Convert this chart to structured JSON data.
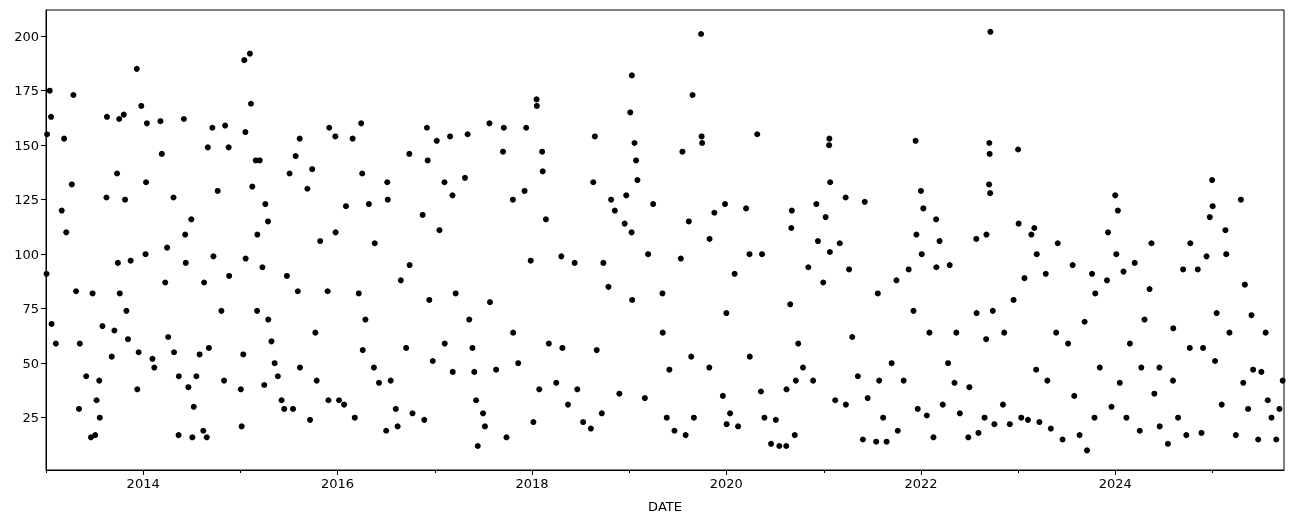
{
  "chart_data": {
    "type": "scatter",
    "xlabel": "DATE",
    "color": "#000000",
    "marker": "circle",
    "xlim": [
      "2013-01-01",
      "2025-09-26"
    ],
    "ylim": [
      1,
      212
    ],
    "xticks": [
      {
        "value": "2013",
        "label": null
      },
      "2014",
      {
        "value": "2015",
        "label": null
      },
      "2016",
      {
        "value": "2017",
        "label": null
      },
      "2018",
      {
        "value": "2019",
        "label": null
      },
      "2020",
      {
        "value": "2021",
        "label": null
      },
      "2022",
      {
        "value": "2023",
        "label": null
      },
      "2024",
      {
        "value": "2025",
        "label": null
      }
    ],
    "yticks": [
      25,
      50,
      75,
      100,
      125,
      150,
      175,
      200
    ],
    "x": [
      "2013-01-03",
      "2013-01-05",
      "2013-01-15",
      "2013-01-20",
      "2013-01-22",
      "2013-02-07",
      "2013-03-01",
      "2013-03-10",
      "2013-03-18",
      "2013-04-08",
      "2013-04-14",
      "2013-04-24",
      "2013-05-05",
      "2013-05-08",
      "2013-06-01",
      "2013-06-19",
      "2013-06-25",
      "2013-07-05",
      "2013-07-10",
      "2013-07-20",
      "2013-07-22",
      "2013-08-01",
      "2013-08-16",
      "2013-08-18",
      "2013-09-05",
      "2013-09-15",
      "2013-09-25",
      "2013-09-28",
      "2013-10-03",
      "2013-10-05",
      "2013-10-20",
      "2013-10-25",
      "2013-10-30",
      "2013-11-05",
      "2013-11-15",
      "2013-12-08",
      "2013-12-10",
      "2013-12-15",
      "2013-12-25",
      "2014-01-10",
      "2014-01-12",
      "2014-01-15",
      "2014-02-05",
      "2014-02-12",
      "2014-03-07",
      "2014-03-12",
      "2014-03-25",
      "2014-04-01",
      "2014-04-05",
      "2014-04-25",
      "2014-04-27",
      "2014-05-14",
      "2014-05-15",
      "2014-06-03",
      "2014-06-08",
      "2014-06-10",
      "2014-06-20",
      "2014-07-01",
      "2014-07-05",
      "2014-07-10",
      "2014-07-20",
      "2014-08-01",
      "2014-08-15",
      "2014-08-18",
      "2014-08-28",
      "2014-09-01",
      "2014-09-05",
      "2014-09-18",
      "2014-09-22",
      "2014-10-08",
      "2014-10-22",
      "2014-11-01",
      "2014-11-05",
      "2014-11-18",
      "2014-11-20",
      "2015-01-03",
      "2015-01-06",
      "2015-01-12",
      "2015-01-16",
      "2015-01-20",
      "2015-01-21",
      "2015-02-06",
      "2015-02-10",
      "2015-02-15",
      "2015-02-28",
      "2015-03-05",
      "2015-03-06",
      "2015-03-15",
      "2015-03-25",
      "2015-04-01",
      "2015-04-05",
      "2015-04-15",
      "2015-04-16",
      "2015-04-28",
      "2015-05-10",
      "2015-05-22",
      "2015-06-05",
      "2015-06-15",
      "2015-06-25",
      "2015-07-05",
      "2015-07-18",
      "2015-07-28",
      "2015-08-05",
      "2015-08-12",
      "2015-08-13",
      "2015-09-10",
      "2015-09-20",
      "2015-09-28",
      "2015-10-10",
      "2015-10-15",
      "2015-10-28",
      "2015-11-25",
      "2015-11-28",
      "2015-12-01",
      "2015-12-24",
      "2015-12-25",
      "2016-01-07",
      "2016-01-26",
      "2016-02-02",
      "2016-02-27",
      "2016-03-06",
      "2016-03-21",
      "2016-03-30",
      "2016-04-03",
      "2016-04-05",
      "2016-04-15",
      "2016-04-28",
      "2016-05-17",
      "2016-05-20",
      "2016-06-05",
      "2016-07-02",
      "2016-07-06",
      "2016-07-08",
      "2016-07-19",
      "2016-08-07",
      "2016-08-14",
      "2016-08-26",
      "2016-09-15",
      "2016-09-27",
      "2016-09-28",
      "2016-10-09",
      "2016-11-16",
      "2016-11-22",
      "2016-12-02",
      "2016-12-05",
      "2016-12-11",
      "2016-12-24",
      "2017-01-08",
      "2017-01-18",
      "2017-02-06",
      "2017-02-07",
      "2017-02-27",
      "2017-03-08",
      "2017-03-09",
      "2017-03-20",
      "2017-04-24",
      "2017-05-04",
      "2017-05-10",
      "2017-05-22",
      "2017-05-29",
      "2017-06-05",
      "2017-06-11",
      "2017-07-01",
      "2017-07-08",
      "2017-07-25",
      "2017-07-27",
      "2017-08-19",
      "2017-09-14",
      "2017-09-17",
      "2017-09-27",
      "2017-10-21",
      "2017-10-22",
      "2017-11-10",
      "2017-12-04",
      "2017-12-10",
      "2017-12-27",
      "2018-01-06",
      "2018-01-18",
      "2018-01-19",
      "2018-01-28",
      "2018-02-08",
      "2018-02-10",
      "2018-02-22",
      "2018-03-05",
      "2018-04-02",
      "2018-04-21",
      "2018-04-25",
      "2018-05-16",
      "2018-06-10",
      "2018-06-20",
      "2018-07-12",
      "2018-08-10",
      "2018-08-19",
      "2018-08-25",
      "2018-09-01",
      "2018-09-20",
      "2018-09-26",
      "2018-10-15",
      "2018-10-25",
      "2018-11-08",
      "2018-11-25",
      "2018-12-15",
      "2018-12-21",
      "2019-01-05",
      "2019-01-10",
      "2019-01-11",
      "2019-01-12",
      "2019-01-21",
      "2019-01-27",
      "2019-02-01",
      "2019-03-01",
      "2019-03-13",
      "2019-04-01",
      "2019-05-06",
      "2019-05-07",
      "2019-05-22",
      "2019-06-01",
      "2019-06-20",
      "2019-07-14",
      "2019-07-20",
      "2019-08-01",
      "2019-08-13",
      "2019-08-22",
      "2019-08-27",
      "2019-09-01",
      "2019-09-28",
      "2019-09-30",
      "2019-10-02",
      "2019-10-29",
      "2019-10-30",
      "2019-11-17",
      "2019-12-19",
      "2019-12-27",
      "2020-01-01",
      "2020-01-02",
      "2020-01-15",
      "2020-02-01",
      "2020-02-14",
      "2020-03-15",
      "2020-03-28",
      "2020-03-29",
      "2020-04-26",
      "2020-05-10",
      "2020-05-14",
      "2020-05-23",
      "2020-06-17",
      "2020-07-05",
      "2020-07-18",
      "2020-08-13",
      "2020-08-14",
      "2020-08-28",
      "2020-09-01",
      "2020-09-03",
      "2020-09-14",
      "2020-09-18",
      "2020-09-27",
      "2020-10-15",
      "2020-11-04",
      "2020-11-22",
      "2020-12-04",
      "2020-12-10",
      "2020-12-30",
      "2021-01-08",
      "2021-01-21",
      "2021-01-22",
      "2021-01-24",
      "2021-01-25",
      "2021-02-13",
      "2021-03-02",
      "2021-03-24",
      "2021-03-25",
      "2021-04-06",
      "2021-04-18",
      "2021-05-09",
      "2021-05-28",
      "2021-06-04",
      "2021-06-15",
      "2021-07-17",
      "2021-07-23",
      "2021-07-28",
      "2021-08-12",
      "2021-08-25",
      "2021-09-13",
      "2021-10-01",
      "2021-10-06",
      "2021-10-28",
      "2021-11-16",
      "2021-12-04",
      "2021-12-12",
      "2021-12-15",
      "2021-12-20",
      "2022-01-01",
      "2022-01-04",
      "2022-01-10",
      "2022-01-23",
      "2022-02-02",
      "2022-02-17",
      "2022-02-27",
      "2022-02-28",
      "2022-03-12",
      "2022-03-24",
      "2022-04-13",
      "2022-04-19",
      "2022-05-07",
      "2022-05-14",
      "2022-05-27",
      "2022-06-28",
      "2022-07-02",
      "2022-07-28",
      "2022-07-29",
      "2022-08-05",
      "2022-08-28",
      "2022-09-03",
      "2022-09-04",
      "2022-09-14",
      "2022-09-15",
      "2022-09-16",
      "2022-09-18",
      "2022-09-19",
      "2022-09-28",
      "2022-10-04",
      "2022-11-05",
      "2022-11-10",
      "2022-12-01",
      "2022-12-15",
      "2023-01-01",
      "2023-01-03",
      "2023-01-13",
      "2023-01-25",
      "2023-02-07",
      "2023-02-20",
      "2023-03-03",
      "2023-03-10",
      "2023-03-12",
      "2023-03-22",
      "2023-04-15",
      "2023-04-21",
      "2023-05-04",
      "2023-05-24",
      "2023-05-30",
      "2023-06-17",
      "2023-07-08",
      "2023-07-25",
      "2023-07-31",
      "2023-08-20",
      "2023-09-08",
      "2023-09-17",
      "2023-10-06",
      "2023-10-15",
      "2023-10-18",
      "2023-11-04",
      "2023-12-01",
      "2023-12-05",
      "2023-12-18",
      "2024-01-01",
      "2024-01-05",
      "2024-01-11",
      "2024-01-18",
      "2024-02-01",
      "2024-02-12",
      "2024-02-25",
      "2024-03-14",
      "2024-04-02",
      "2024-04-08",
      "2024-04-20",
      "2024-05-09",
      "2024-05-16",
      "2024-05-27",
      "2024-06-15",
      "2024-06-16",
      "2024-07-17",
      "2024-08-05",
      "2024-08-06",
      "2024-08-24",
      "2024-09-12",
      "2024-09-24",
      "2024-10-07",
      "2024-10-09",
      "2024-11-06",
      "2024-11-20",
      "2024-11-26",
      "2024-12-09",
      "2024-12-21",
      "2024-12-30",
      "2025-01-01",
      "2025-01-10",
      "2025-01-16",
      "2025-02-04",
      "2025-02-18",
      "2025-02-21",
      "2025-03-05",
      "2025-03-29",
      "2025-04-17",
      "2025-04-26",
      "2025-05-02",
      "2025-05-14",
      "2025-05-27",
      "2025-06-02",
      "2025-06-21",
      "2025-07-03",
      "2025-07-19",
      "2025-07-27",
      "2025-08-10",
      "2025-08-28",
      "2025-09-09",
      "2025-09-21"
    ],
    "values": [
      91,
      155,
      175,
      163,
      68,
      59,
      120,
      153,
      110,
      132,
      173,
      83,
      29,
      59,
      44,
      16,
      82,
      17,
      33,
      42,
      25,
      67,
      126,
      163,
      53,
      65,
      137,
      96,
      162,
      82,
      164,
      125,
      74,
      61,
      97,
      185,
      38,
      55,
      168,
      100,
      133,
      160,
      52,
      48,
      161,
      146,
      87,
      103,
      62,
      126,
      55,
      17,
      44,
      162,
      109,
      96,
      39,
      116,
      16,
      30,
      44,
      54,
      19,
      87,
      16,
      149,
      57,
      158,
      99,
      129,
      74,
      42,
      159,
      149,
      90,
      38,
      21,
      54,
      189,
      156,
      98,
      192,
      169,
      131,
      143,
      74,
      109,
      143,
      94,
      40,
      123,
      115,
      70,
      60,
      50,
      44,
      33,
      29,
      90,
      137,
      29,
      145,
      83,
      153,
      48,
      130,
      24,
      139,
      64,
      42,
      106,
      83,
      33,
      158,
      154,
      110,
      33,
      31,
      122,
      153,
      25,
      82,
      160,
      137,
      56,
      70,
      123,
      48,
      105,
      41,
      19,
      133,
      125,
      42,
      29,
      21,
      88,
      57,
      146,
      95,
      27,
      118,
      24,
      158,
      143,
      79,
      51,
      152,
      111,
      133,
      59,
      154,
      127,
      46,
      82,
      135,
      155,
      70,
      57,
      46,
      33,
      12,
      27,
      21,
      160,
      78,
      47,
      147,
      158,
      16,
      125,
      64,
      50,
      129,
      158,
      97,
      23,
      171,
      168,
      38,
      147,
      138,
      116,
      59,
      41,
      99,
      57,
      31,
      96,
      38,
      23,
      20,
      133,
      154,
      56,
      27,
      96,
      85,
      125,
      120,
      36,
      114,
      127,
      165,
      110,
      182,
      79,
      151,
      143,
      134,
      34,
      100,
      123,
      82,
      64,
      25,
      47,
      19,
      98,
      147,
      17,
      115,
      53,
      173,
      25,
      201,
      154,
      151,
      48,
      107,
      119,
      35,
      123,
      73,
      22,
      27,
      91,
      21,
      121,
      100,
      53,
      155,
      37,
      100,
      25,
      13,
      24,
      12,
      12,
      38,
      77,
      112,
      120,
      17,
      42,
      59,
      48,
      94,
      42,
      123,
      106,
      87,
      117,
      150,
      153,
      101,
      133,
      33,
      105,
      126,
      31,
      93,
      62,
      44,
      15,
      124,
      34,
      14,
      82,
      42,
      25,
      14,
      50,
      88,
      19,
      42,
      93,
      74,
      152,
      109,
      29,
      129,
      100,
      121,
      26,
      64,
      16,
      116,
      94,
      106,
      31,
      50,
      95,
      41,
      64,
      27,
      16,
      39,
      107,
      73,
      18,
      25,
      61,
      109,
      132,
      151,
      146,
      128,
      202,
      74,
      22,
      31,
      64,
      22,
      79,
      148,
      114,
      25,
      89,
      24,
      109,
      112,
      47,
      100,
      23,
      91,
      42,
      20,
      64,
      105,
      15,
      59,
      95,
      35,
      17,
      69,
      10,
      91,
      25,
      82,
      48,
      88,
      110,
      30,
      127,
      100,
      120,
      41,
      92,
      25,
      59,
      96,
      19,
      48,
      70,
      84,
      105,
      36,
      48,
      21,
      13,
      42,
      66,
      25,
      93,
      17,
      57,
      105,
      93,
      18,
      57,
      99,
      117,
      134,
      122,
      51,
      73,
      31,
      111,
      100,
      64,
      17,
      125,
      41,
      86,
      29,
      72,
      47,
      15,
      46,
      64,
      33,
      25,
      15,
      29,
      42
    ]
  }
}
